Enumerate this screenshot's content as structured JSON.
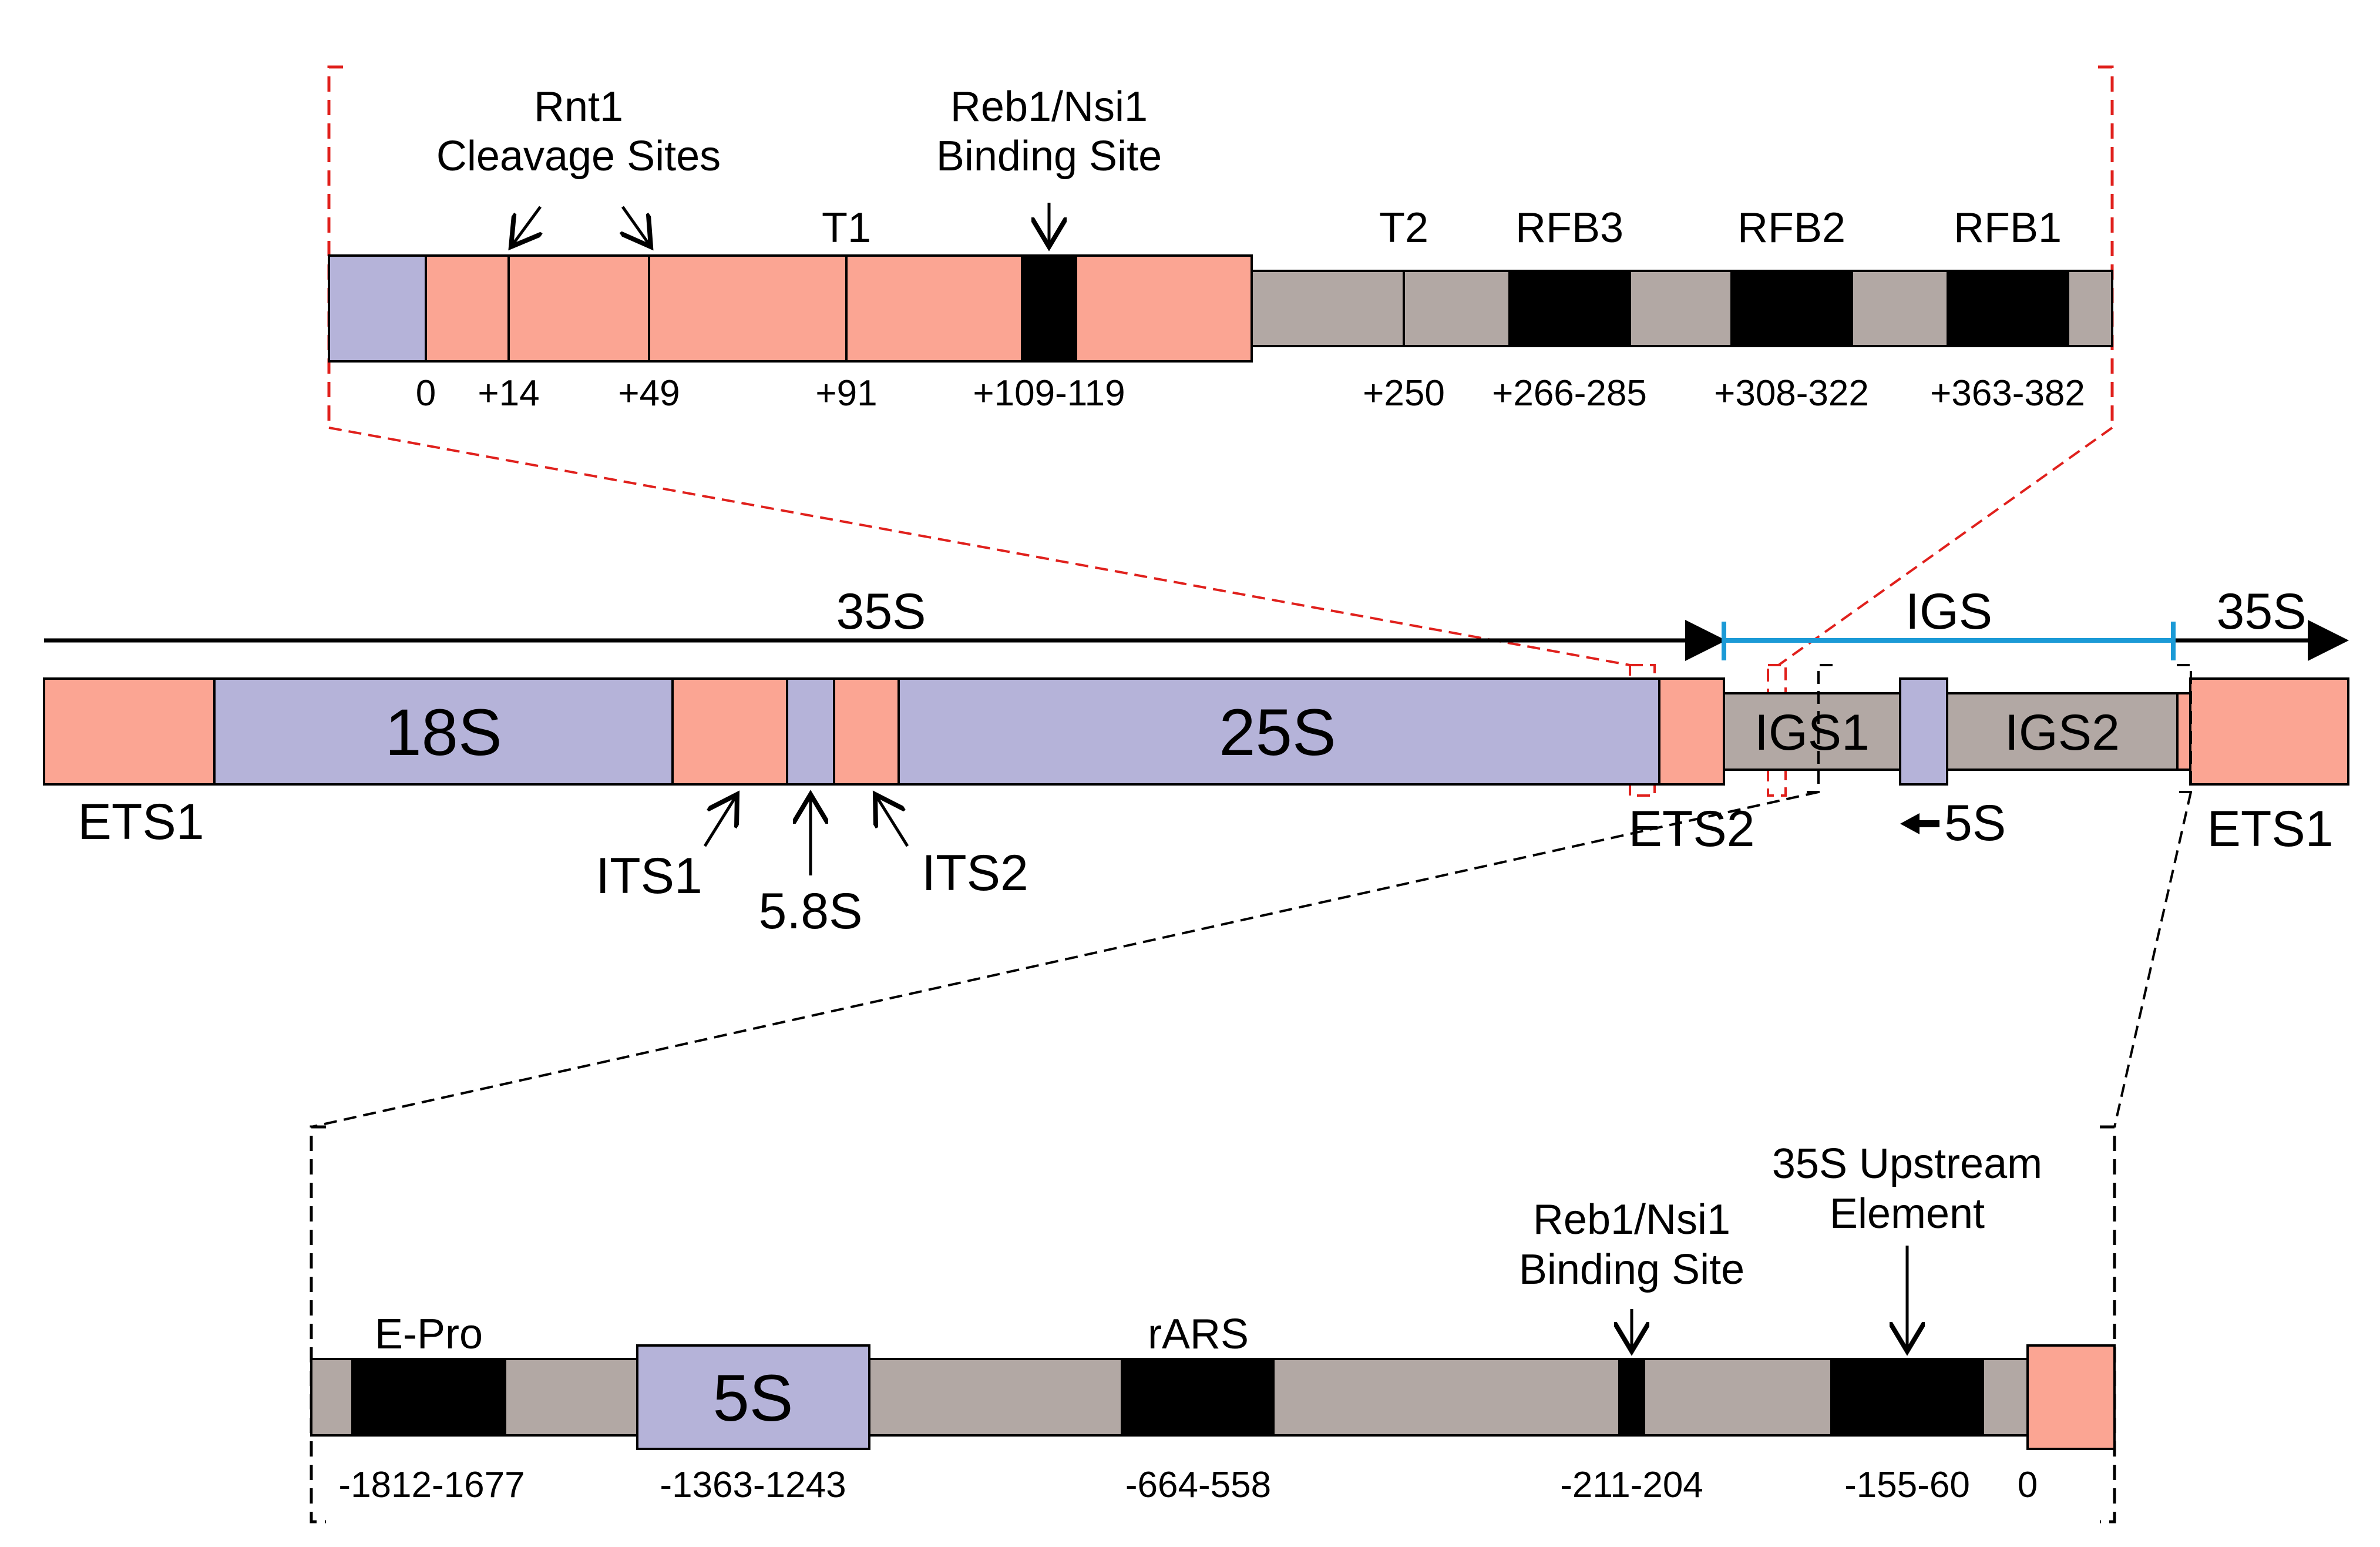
{
  "colors": {
    "salmon": "#fba593",
    "lavender": "#b5b3d9",
    "taupe": "#b2a8a4",
    "black": "#000000",
    "red_dash": "#e0201c",
    "black_dash": "#000000",
    "igs_line": "#1b9ad6"
  },
  "top_panel": {
    "annotations": {
      "rnt1_line1": "Rnt1",
      "rnt1_line2": "Cleavage Sites",
      "reb1_line1": "Reb1/Nsi1",
      "reb1_line2": "Binding Site"
    },
    "features": {
      "t1": "T1",
      "t2": "T2",
      "rfb3": "RFB3",
      "rfb2": "RFB2",
      "rfb1": "RFB1"
    },
    "positions": [
      "0",
      "+14",
      "+49",
      "+91",
      "+109-119",
      "+250",
      "+266-285",
      "+308-322",
      "+363-382"
    ]
  },
  "middle_panel": {
    "arrow_35s_left": "35S",
    "arrow_igs": "IGS",
    "arrow_35s_right": "35S",
    "segments": {
      "s18": "18S",
      "s25": "25S",
      "igs1": "IGS1",
      "igs2": "IGS2"
    },
    "labels": {
      "ets1_left": "ETS1",
      "its1": "ITS1",
      "s58": "5.8S",
      "its2": "ITS2",
      "ets2": "ETS2",
      "s5": "5S",
      "ets1_right": "ETS1"
    }
  },
  "bottom_panel": {
    "features": {
      "epro": "E-Pro",
      "s5": "5S",
      "rars": "rARS"
    },
    "annotations": {
      "reb1_line1": "Reb1/Nsi1",
      "reb1_line2": "Binding Site",
      "upstream_line1": "35S Upstream",
      "upstream_line2": "Element"
    },
    "positions": [
      "-1812-1677",
      "-1363-1243",
      "-664-558",
      "-211-204",
      "-155-60",
      "0"
    ]
  }
}
